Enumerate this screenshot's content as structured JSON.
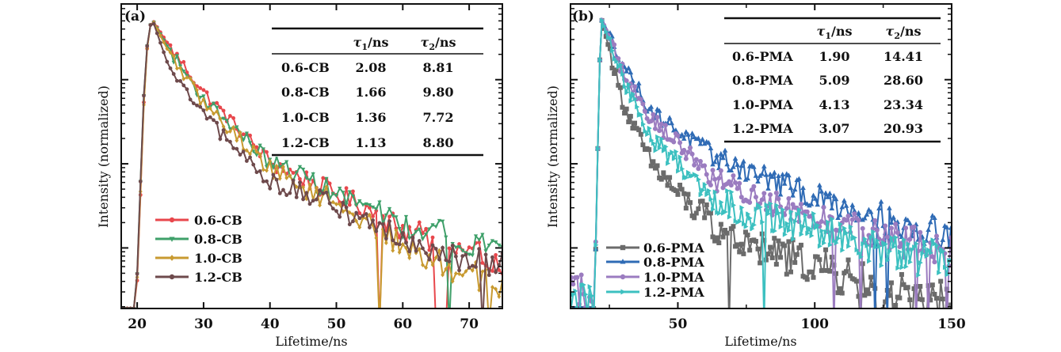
{
  "chart_data": [
    {
      "type": "line",
      "panel_label": "(a)",
      "title": "",
      "xlabel": "Lifetime/ns",
      "ylabel": "Intensity (normalized)",
      "xlim": [
        17.6,
        75
      ],
      "ylim_log10": [
        -3.43,
        0.19
      ],
      "yscale": "log",
      "x_ticks": [
        20,
        30,
        40,
        50,
        60,
        70
      ],
      "x_tick_labels": [
        "20",
        "30",
        "40",
        "50",
        "60",
        "70"
      ],
      "y_major_ticks_log10": [
        -0.71,
        -1.71,
        -2.71
      ],
      "grid": false,
      "legend_position": "bottom-left",
      "series": [
        {
          "name": "0.6-CB",
          "color": "#e8474c",
          "marker": "circle",
          "x": [
            18,
            19.8,
            20.3,
            20.8,
            21.3,
            21.8,
            22.3,
            25,
            30,
            35,
            40,
            45,
            50,
            55,
            60,
            65,
            70,
            75
          ],
          "log10_y": [
            -3.43,
            -3.43,
            -2.6,
            -1.3,
            -0.5,
            -0.1,
            0,
            -0.33,
            -0.86,
            -1.27,
            -1.69,
            -1.88,
            -2.07,
            -2.25,
            -2.49,
            -2.63,
            -2.77,
            -2.86
          ]
        },
        {
          "name": "0.8-CB",
          "color": "#3fa06a",
          "marker": "triangle-down",
          "x": [
            18,
            19.8,
            20.3,
            20.8,
            21.3,
            21.8,
            22.3,
            25,
            30,
            35,
            40,
            45,
            50,
            55,
            60,
            65,
            70,
            75
          ],
          "log10_y": [
            -3.43,
            -3.43,
            -2.4,
            -1.2,
            -0.45,
            -0.1,
            0,
            -0.38,
            -0.94,
            -1.31,
            -1.69,
            -1.85,
            -2.07,
            -2.23,
            -2.44,
            -2.49,
            -2.63,
            -2.68
          ]
        },
        {
          "name": "1.0-CB",
          "color": "#c89a30",
          "marker": "diamond",
          "x": [
            18,
            19.8,
            20.3,
            20.8,
            21.3,
            21.8,
            22.3,
            25,
            30,
            35,
            40,
            45,
            50,
            55,
            60,
            65,
            70,
            75
          ],
          "log10_y": [
            -3.43,
            -3.43,
            -2.5,
            -1.35,
            -0.5,
            -0.1,
            0,
            -0.42,
            -0.99,
            -1.38,
            -1.76,
            -2.0,
            -2.16,
            -2.44,
            -2.68,
            -2.86,
            -3.0,
            -3.19
          ]
        },
        {
          "name": "1.2-CB",
          "color": "#6e4a4c",
          "marker": "circle",
          "x": [
            18,
            19.8,
            20.3,
            20.8,
            21.3,
            21.8,
            22.3,
            25,
            30,
            35,
            40,
            45,
            50,
            55,
            60,
            65,
            70,
            75
          ],
          "log10_y": [
            -3.43,
            -3.43,
            -2.4,
            -1.2,
            -0.45,
            -0.1,
            0,
            -0.61,
            -1.13,
            -1.55,
            -1.91,
            -2.07,
            -2.23,
            -2.39,
            -2.58,
            -2.72,
            -2.86,
            -2.86
          ]
        }
      ],
      "table": {
        "headers": [
          "",
          "τ1/ns",
          "τ2/ns"
        ],
        "rows": [
          [
            "0.6-CB",
            "2.08",
            "8.81"
          ],
          [
            "0.8-CB",
            "1.66",
            "9.80"
          ],
          [
            "1.0-CB",
            "1.36",
            "7.72"
          ],
          [
            "1.2-CB",
            "1.13",
            "8.80"
          ]
        ]
      }
    },
    {
      "type": "line",
      "panel_label": "(b)",
      "title": "",
      "xlabel": "Lifetime/ns",
      "ylabel": "Intensity (normalized)",
      "xlim": [
        10.8,
        150
      ],
      "ylim_log10": [
        -3.43,
        0.19
      ],
      "yscale": "log",
      "x_ticks": [
        50,
        100,
        150
      ],
      "x_tick_labels": [
        "50",
        "100",
        "150"
      ],
      "x_minor_ticks": [
        25,
        75,
        125
      ],
      "y_major_ticks_log10": [
        -0.71,
        -1.71,
        -2.71
      ],
      "grid": false,
      "legend_position": "bottom-left",
      "series": [
        {
          "name": "0.6-PMA",
          "color": "#6b6b6b",
          "marker": "square",
          "x": [
            11,
            19.5,
            20.3,
            21,
            21.6,
            22.2,
            30,
            40,
            50,
            63,
            75,
            100,
            125,
            150
          ],
          "log10_y": [
            -3.43,
            -3.43,
            -2.3,
            -1.1,
            -0.35,
            0,
            -0.99,
            -1.69,
            -2.07,
            -2.44,
            -2.68,
            -2.91,
            -3.24,
            -3.38
          ]
        },
        {
          "name": "0.8-PMA",
          "color": "#2f6bb5",
          "marker": "triangle-up",
          "x": [
            11,
            19.5,
            20.3,
            21,
            21.6,
            22.2,
            30,
            40,
            50,
            63,
            75,
            100,
            125,
            150
          ],
          "log10_y": [
            -3.43,
            -3.43,
            -2.3,
            -1.1,
            -0.35,
            0,
            -0.52,
            -1.08,
            -1.31,
            -1.62,
            -1.78,
            -2.11,
            -2.35,
            -2.55
          ]
        },
        {
          "name": "1.0-PMA",
          "color": "#9b7cc0",
          "marker": "circle",
          "x": [
            11,
            19.5,
            20.3,
            21,
            21.6,
            22.2,
            30,
            40,
            50,
            63,
            75,
            100,
            125,
            150
          ],
          "log10_y": [
            -3.2,
            -3.2,
            -2.3,
            -1.1,
            -0.35,
            0,
            -0.61,
            -1.17,
            -1.46,
            -1.88,
            -2.07,
            -2.3,
            -2.58,
            -2.77
          ]
        },
        {
          "name": "1.2-PMA",
          "color": "#3cc0c0",
          "marker": "triangle-right",
          "x": [
            11,
            19.5,
            20.3,
            21,
            21.6,
            22.2,
            30,
            40,
            50,
            63,
            75,
            100,
            125,
            150
          ],
          "log10_y": [
            -3.43,
            -3.3,
            -2.3,
            -1.1,
            -0.35,
            0,
            -0.7,
            -1.41,
            -1.69,
            -2.11,
            -2.3,
            -2.49,
            -2.77,
            -2.86
          ]
        }
      ],
      "table": {
        "headers": [
          "",
          "τ1/ns",
          "τ2/ns"
        ],
        "rows": [
          [
            "0.6-PMA",
            "1.90",
            "14.41"
          ],
          [
            "0.8-PMA",
            "5.09",
            "28.60"
          ],
          [
            "1.0-PMA",
            "4.13",
            "23.34"
          ],
          [
            "1.2-PMA",
            "3.07",
            "20.93"
          ]
        ]
      }
    }
  ]
}
